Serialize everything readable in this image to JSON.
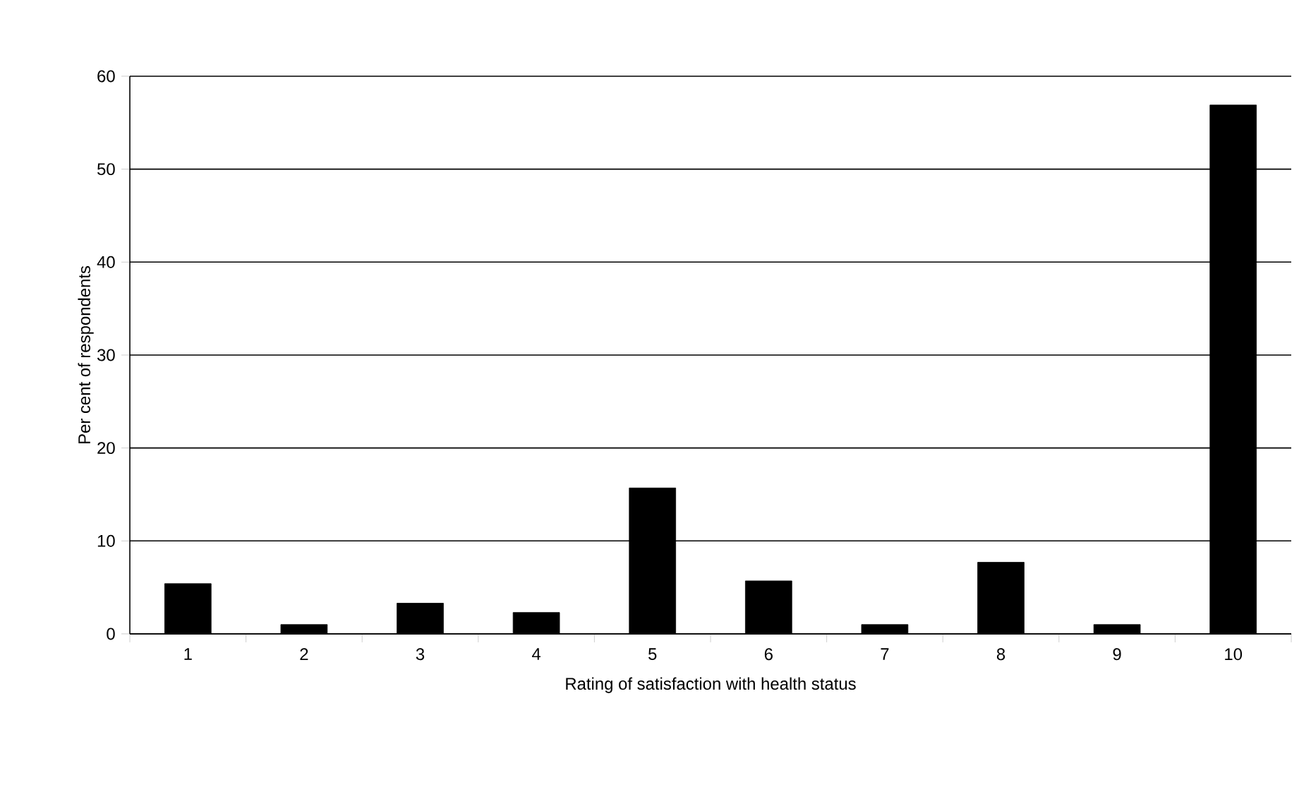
{
  "chart_data": {
    "type": "bar",
    "xlabel": "Rating of satisfaction with health status",
    "ylabel": "Per cent of respondents",
    "categories": [
      "1",
      "2",
      "3",
      "4",
      "5",
      "6",
      "7",
      "8",
      "9",
      "10"
    ],
    "values": [
      5.4,
      1.0,
      3.3,
      2.3,
      15.7,
      5.7,
      1.0,
      7.7,
      1.0,
      56.9
    ],
    "color": "#000000",
    "ylim": [
      0,
      60
    ],
    "yticks": [
      0,
      10,
      20,
      30,
      40,
      50,
      60
    ],
    "grid": "y"
  }
}
